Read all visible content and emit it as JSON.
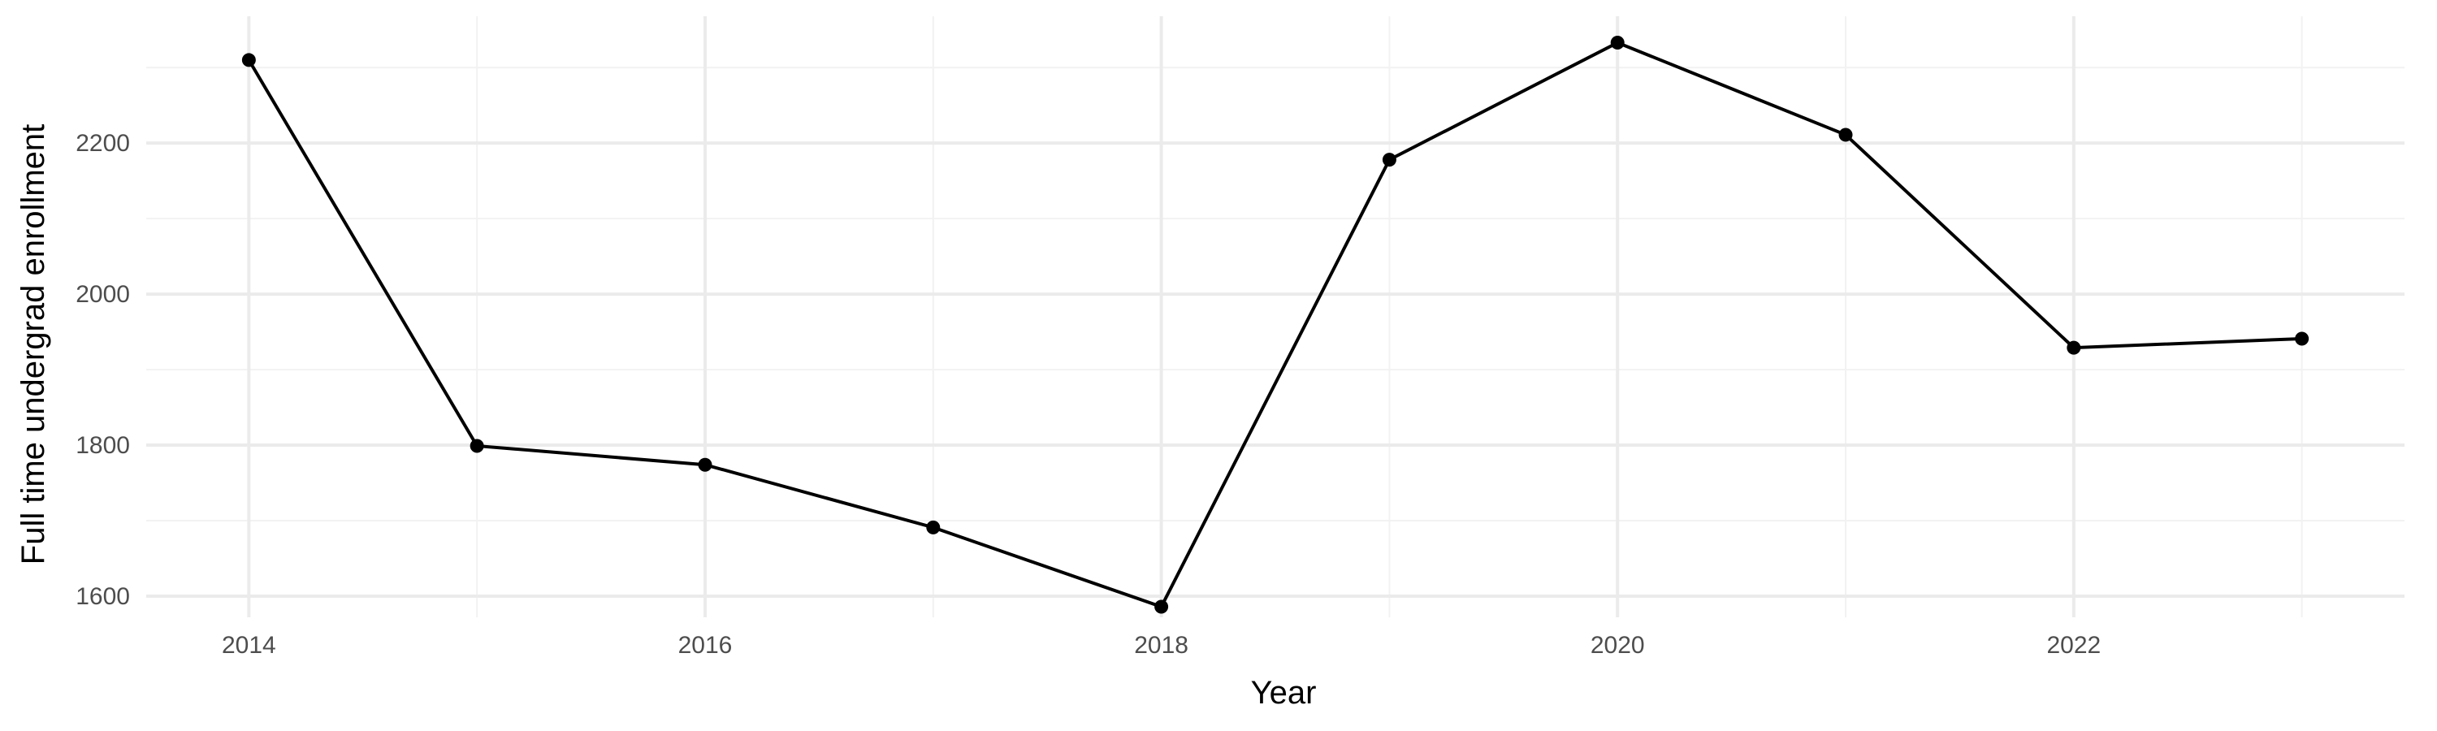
{
  "chart_data": {
    "type": "line",
    "title": "",
    "xlabel": "Year",
    "ylabel": "Full time undergrad enrollment",
    "x": [
      2014,
      2015,
      2016,
      2017,
      2018,
      2019,
      2020,
      2021,
      2022,
      2023
    ],
    "series": [
      {
        "values": [
          2310,
          1799,
          1774,
          1691,
          1586,
          2178,
          2333,
          2211,
          1929,
          1941
        ]
      }
    ],
    "xlim": [
      2013.55,
      2023.45
    ],
    "ylim": [
      1572,
      2368
    ],
    "x_ticks": [
      2014,
      2016,
      2018,
      2020,
      2022
    ],
    "x_tick_labels": [
      "2014",
      "2016",
      "2018",
      "2020",
      "2022"
    ],
    "x_minor_ticks": [
      2015,
      2017,
      2019,
      2021,
      2023
    ],
    "y_ticks": [
      1600,
      1800,
      2000,
      2200
    ],
    "y_tick_labels": [
      "1600",
      "1800",
      "2000",
      "2200"
    ],
    "y_minor_ticks": [
      1700,
      1900,
      2100,
      2300
    ],
    "grid": true,
    "legend": "none",
    "colors": {
      "line": "#000000",
      "points": "#000000",
      "grid_major": "#ebebeb",
      "grid_minor": "#f2f2f2",
      "tick_text": "#4d4d4d",
      "background": "#ffffff"
    }
  }
}
